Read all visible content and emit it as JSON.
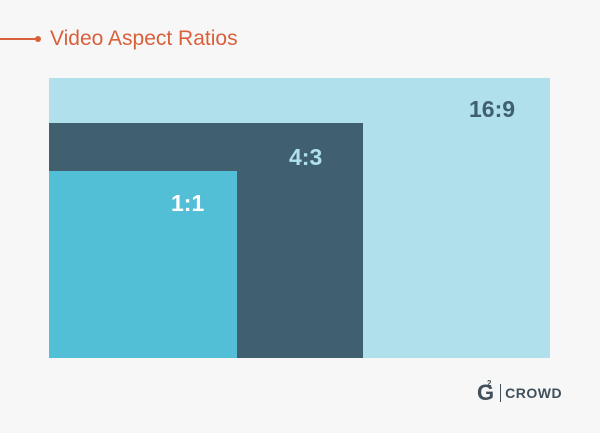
{
  "title": "Video Aspect Ratios",
  "chart_data": {
    "type": "diagram",
    "title": "Video Aspect Ratios",
    "items": [
      {
        "label": "16:9",
        "color": "#afe0eb",
        "label_color": "#41606f"
      },
      {
        "label": "4:3",
        "color": "#41606f",
        "label_color": "#afe0eb"
      },
      {
        "label": "1:1",
        "color": "#52bfd7",
        "label_color": "#ffffff"
      }
    ]
  },
  "accent_color": "#d9603b",
  "logo": {
    "mark": "G",
    "superscript": "2",
    "text": "CROWD"
  }
}
